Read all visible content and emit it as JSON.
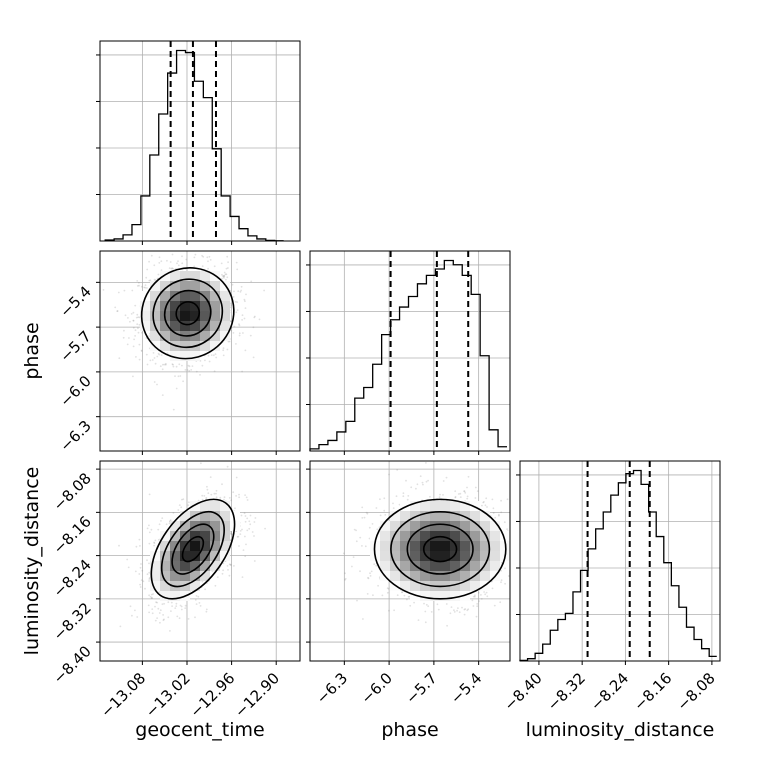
{
  "chart_data": {
    "type": "corner",
    "parameters": [
      {
        "name": "geocent_time",
        "ticks": [
          -13.08,
          -13.02,
          -12.96,
          -12.9
        ],
        "tick_labels": [
          "−13.08",
          "−13.02",
          "−12.96",
          "−12.90"
        ],
        "range": [
          -13.137,
          -12.868
        ],
        "quantiles": [
          -13.042,
          -13.012,
          -12.981
        ],
        "hist_x": [
          -13.124,
          -13.112,
          -13.1,
          -13.088,
          -13.076,
          -13.064,
          -13.052,
          -13.04,
          -13.028,
          -13.016,
          -13.004,
          -12.992,
          -12.98,
          -12.968,
          -12.956,
          -12.944,
          -12.932,
          -12.92,
          -12.908,
          -12.896
        ],
        "hist": [
          0.5,
          1,
          3,
          8,
          22,
          42,
          62,
          82,
          93,
          92,
          78,
          70,
          45,
          22,
          12,
          6,
          2.5,
          1,
          0.3,
          0.1
        ]
      },
      {
        "name": "phase",
        "ticks": [
          -6.3,
          -6.0,
          -5.7,
          -5.4
        ],
        "tick_labels": [
          "−6.3",
          "−6.0",
          "−5.7",
          "−5.4"
        ],
        "range": [
          -6.53,
          -5.19
        ],
        "quantiles": [
          -5.99,
          -5.68,
          -5.47
        ],
        "hist_x": [
          -6.5,
          -6.44,
          -6.38,
          -6.32,
          -6.26,
          -6.2,
          -6.14,
          -6.08,
          -6.02,
          -5.96,
          -5.9,
          -5.84,
          -5.78,
          -5.72,
          -5.66,
          -5.6,
          -5.54,
          -5.48,
          -5.42,
          -5.36,
          -5.3,
          -5.24
        ],
        "hist": [
          1,
          3,
          5,
          9,
          14,
          25,
          30,
          41,
          55,
          62,
          68,
          73,
          79,
          83,
          86,
          90,
          88,
          83,
          74,
          45,
          10,
          2
        ]
      },
      {
        "name": "luminosity_distance",
        "ticks": [
          -8.4,
          -8.32,
          -8.24,
          -8.16,
          -8.08
        ],
        "tick_labels": [
          "−8.40",
          "−8.32",
          "−8.24",
          "−8.16",
          "−8.08"
        ],
        "range": [
          -8.435,
          -8.065
        ],
        "quantiles": [
          -8.31,
          -8.232,
          -8.195
        ],
        "hist_x": [
          -8.428,
          -8.414,
          -8.4,
          -8.386,
          -8.372,
          -8.358,
          -8.344,
          -8.33,
          -8.316,
          -8.302,
          -8.288,
          -8.274,
          -8.26,
          -8.246,
          -8.232,
          -8.218,
          -8.204,
          -8.19,
          -8.176,
          -8.162,
          -8.148,
          -8.134,
          -8.12,
          -8.106,
          -8.092,
          -8.078
        ],
        "hist": [
          0.4,
          1.5,
          5,
          11,
          20,
          27,
          31,
          45,
          59,
          73,
          86,
          97,
          108,
          116,
          122,
          124,
          115,
          97,
          81,
          64,
          49,
          35,
          22,
          14,
          8,
          3
        ]
      }
    ],
    "pairs": [
      {
        "x": "geocent_time",
        "y": "phase",
        "center": [
          -13.019,
          -5.607
        ],
        "spread": [
          0.031,
          0.152
        ],
        "correlation": 0.05
      },
      {
        "x": "geocent_time",
        "y": "luminosity_distance",
        "center": [
          -13.012,
          -8.228
        ],
        "spread": [
          0.028,
          0.046
        ],
        "correlation": 0.5
      },
      {
        "x": "phase",
        "y": "luminosity_distance",
        "center": [
          -5.658,
          -8.228
        ],
        "spread": [
          0.22,
          0.046
        ],
        "correlation": 0.0
      }
    ],
    "grid": true
  },
  "colors": {
    "line": "#000000",
    "grid": "#b0b0b0",
    "hist2d_max": "#000000",
    "scatter": "#888888"
  }
}
